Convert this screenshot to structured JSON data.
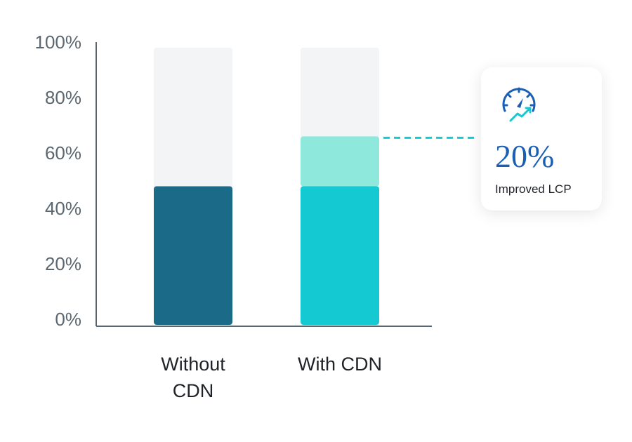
{
  "chart_data": {
    "type": "bar",
    "categories": [
      "Without CDN",
      "With CDN"
    ],
    "series": [
      {
        "values": [
          50,
          50
        ],
        "colors": [
          "#1b6b88",
          "#14c9d2"
        ]
      },
      {
        "values": [
          null,
          18
        ],
        "color": "#8ee8dc"
      }
    ],
    "track_color": "#f3f4f6",
    "ylim": [
      0,
      100
    ],
    "yticks": [
      {
        "value": 0,
        "label": "0%"
      },
      {
        "value": 20,
        "label": "20%"
      },
      {
        "value": 40,
        "label": "40%"
      },
      {
        "value": 60,
        "label": "60%"
      },
      {
        "value": 80,
        "label": "80%"
      },
      {
        "value": 100,
        "label": "100%"
      }
    ],
    "annotation": {
      "value": 20,
      "value_label": "20%",
      "label": "Improved LCP"
    }
  }
}
